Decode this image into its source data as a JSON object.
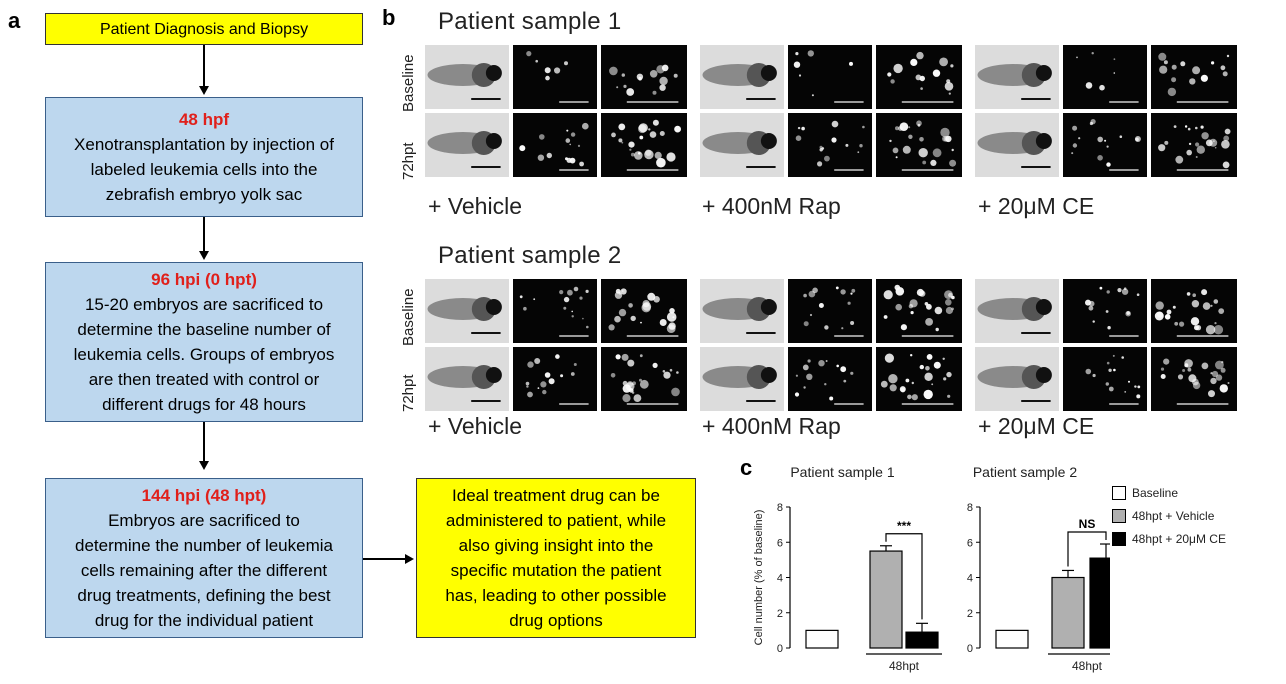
{
  "panel_letters": {
    "a": "a",
    "b": "b",
    "c": "c"
  },
  "flowchart": {
    "box1": {
      "text": "Patient Diagnosis and Biopsy"
    },
    "box2": {
      "heading": "48 hpf",
      "lines": [
        "Xenotransplantation by injection of",
        "labeled leukemia cells into the",
        "zebrafish embryo yolk sac"
      ]
    },
    "box3": {
      "heading": "96 hpi (0 hpt)",
      "lines": [
        "15-20 embryos are sacrificed to",
        "determine the baseline number of",
        "leukemia cells. Groups of embryos",
        "are then treated with control or",
        "different  drugs for 48 hours"
      ]
    },
    "box4": {
      "heading": "144 hpi (48 hpt)",
      "lines": [
        "Embryos are sacrificed to",
        "determine the number of leukemia",
        "cells remaining after the different",
        "drug treatments, defining the best",
        "drug for the individual patient"
      ]
    },
    "box5": {
      "lines": [
        "Ideal treatment drug can be",
        "administered to patient, while",
        "also giving insight into the",
        "specific mutation the patient",
        "has, leading to other possible",
        "drug options"
      ]
    },
    "colors": {
      "yellow": "#ffff00",
      "blue": "#bdd7ee",
      "red": "#e0201b"
    }
  },
  "images": {
    "sample1_title": "Patient sample 1",
    "sample2_title": "Patient sample 2",
    "row_labels": [
      "Baseline",
      "72hpt"
    ],
    "treatments": [
      "+ Vehicle",
      "+ 400nM Rap",
      "+ 20μM CE"
    ]
  },
  "chart_data": [
    {
      "type": "bar",
      "title": "Patient sample 1",
      "ylabel": "Cell number (% of baseline)",
      "ylim": [
        0,
        8
      ],
      "yticks": [
        "0",
        "2",
        "4",
        "6",
        "8"
      ],
      "categories": [
        "Baseline",
        "48hpt + Vehicle",
        "48hpt + 20μM CE"
      ],
      "values": [
        1.0,
        5.5,
        0.9
      ],
      "errors": [
        0,
        0.3,
        0.5
      ],
      "colors": [
        "#ffffff",
        "#b0b0b0",
        "#000000"
      ],
      "group_label": "48hpt",
      "significance": "***"
    },
    {
      "type": "bar",
      "title": "Patient sample 2",
      "ylim": [
        0,
        8
      ],
      "yticks": [
        "0",
        "2",
        "4",
        "6",
        "8"
      ],
      "categories": [
        "Baseline",
        "48hpt + Vehicle",
        "48hpt + 20μM CE"
      ],
      "values": [
        1.0,
        4.0,
        5.1
      ],
      "errors": [
        0,
        0.4,
        0.8
      ],
      "colors": [
        "#ffffff",
        "#b0b0b0",
        "#000000"
      ],
      "group_label": "48hpt",
      "significance": "NS"
    }
  ],
  "legend": [
    "Baseline",
    "48hpt + Vehicle",
    "48hpt + 20μM CE"
  ]
}
